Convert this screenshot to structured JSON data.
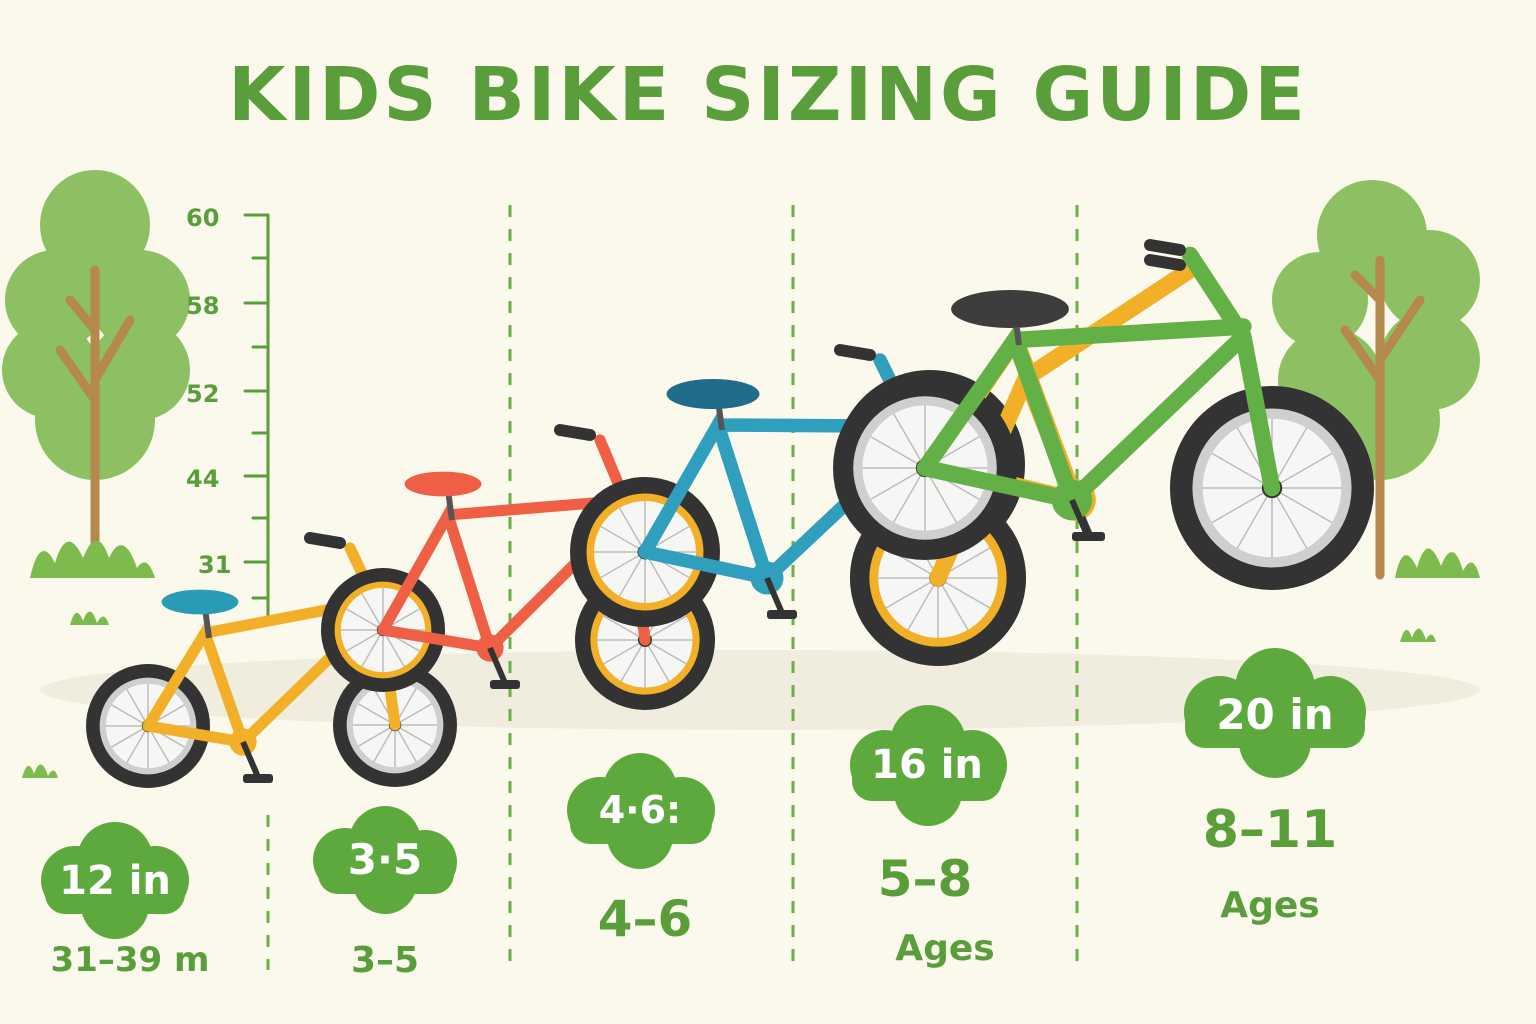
{
  "title": "KIDS BIKE SIZING GUIDE",
  "height_scale": {
    "ticks": [
      "60",
      "58",
      "52",
      "44",
      "31"
    ]
  },
  "sizes": [
    {
      "badge": "12 in",
      "primary": "31–39 m",
      "secondary": ""
    },
    {
      "badge": "3·5",
      "primary": "3–5",
      "secondary": ""
    },
    {
      "badge": "4·6:",
      "primary": "4–6",
      "secondary": ""
    },
    {
      "badge": "16 in",
      "primary": "5–8",
      "secondary": "Ages"
    },
    {
      "badge": "20 in",
      "primary": "8–11",
      "secondary": "Ages"
    }
  ],
  "bikes": [
    {
      "name": "bike-12in",
      "frame_color": "#f2b029",
      "seat_color": "#2a9bb5"
    },
    {
      "name": "bike-14in",
      "frame_color": "#ee5f45",
      "seat_color": "#ee5f45"
    },
    {
      "name": "bike-16in-blue",
      "frame_color": "#2f9fbd",
      "seat_color": "#1f6d8a"
    },
    {
      "name": "bike-18in-yellow",
      "frame_color": "#f2b029",
      "seat_color": "#3d3d3d"
    },
    {
      "name": "bike-20in-green",
      "frame_color": "#62b046",
      "seat_color": "#3d3d3d"
    }
  ],
  "colors": {
    "accent_green": "#5a9e3c",
    "background": "#fbf8ec",
    "badge_green": "#5ea93d",
    "tree_leaf": "#8cc063",
    "tree_trunk": "#b5884e"
  }
}
